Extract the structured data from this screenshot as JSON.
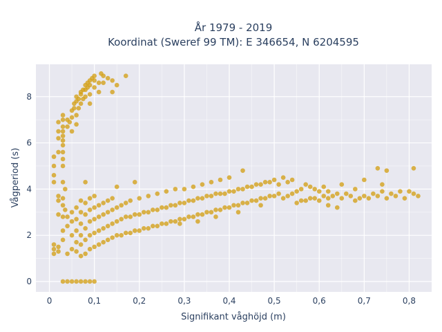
{
  "chart_data": {
    "type": "scatter",
    "title_line1": "År 1979 - 2019",
    "title_line2": "Koordinat (Sweref 99 TM): E 346654, N 6204595",
    "xlabel": "Signifikant våghöjd (m)",
    "ylabel": "Vågperiod (s)",
    "xlim": [
      -0.03,
      0.85
    ],
    "ylim": [
      -0.45,
      9.4
    ],
    "x_ticks": [
      0,
      0.1,
      0.2,
      0.3,
      0.4,
      0.5,
      0.6,
      0.7,
      0.8
    ],
    "x_tick_labels": [
      "0",
      "0,1",
      "0,2",
      "0,3",
      "0,4",
      "0,5",
      "0,6",
      "0,7",
      "0,8"
    ],
    "y_ticks": [
      0,
      2,
      4,
      6,
      8
    ],
    "y_tick_labels": [
      "0",
      "2",
      "4",
      "6",
      "8"
    ],
    "grid": true,
    "marker_color": "#D4A017",
    "plot_bg": "#E8E8F0",
    "series": [
      {
        "points": [
          [
            0.03,
            0
          ],
          [
            0.04,
            0
          ],
          [
            0.05,
            0
          ],
          [
            0.06,
            0
          ],
          [
            0.07,
            0
          ],
          [
            0.08,
            0
          ],
          [
            0.09,
            0
          ],
          [
            0.1,
            0
          ],
          [
            0.01,
            1.2
          ],
          [
            0.01,
            1.4
          ],
          [
            0.01,
            1.6
          ],
          [
            0.02,
            1.3
          ],
          [
            0.02,
            2.9
          ],
          [
            0.01,
            4.3
          ],
          [
            0.01,
            4.6
          ],
          [
            0.01,
            5.0
          ],
          [
            0.01,
            5.4
          ],
          [
            0.02,
            3.5
          ],
          [
            0.02,
            3.7
          ],
          [
            0.02,
            5.6
          ],
          [
            0.02,
            6.2
          ],
          [
            0.02,
            6.5
          ],
          [
            0.02,
            6.9
          ],
          [
            0.03,
            5.0
          ],
          [
            0.03,
            5.3
          ],
          [
            0.03,
            5.6
          ],
          [
            0.03,
            5.9
          ],
          [
            0.03,
            6.1
          ],
          [
            0.03,
            6.3
          ],
          [
            0.03,
            6.5
          ],
          [
            0.03,
            6.7
          ],
          [
            0.03,
            7.0
          ],
          [
            0.03,
            7.2
          ],
          [
            0.03,
            2.8
          ],
          [
            0.03,
            3.3
          ],
          [
            0.03,
            3.6
          ],
          [
            0.03,
            4.3
          ],
          [
            0.035,
            4.0
          ],
          [
            0.035,
            3.1
          ],
          [
            0.04,
            6.7
          ],
          [
            0.04,
            7.0
          ],
          [
            0.045,
            6.9
          ],
          [
            0.05,
            7.1
          ],
          [
            0.05,
            7.4
          ],
          [
            0.055,
            7.5
          ],
          [
            0.055,
            7.7
          ],
          [
            0.06,
            7.8
          ],
          [
            0.06,
            8.0
          ],
          [
            0.06,
            7.2
          ],
          [
            0.065,
            7.9
          ],
          [
            0.065,
            7.5
          ],
          [
            0.07,
            8.1
          ],
          [
            0.07,
            8.2
          ],
          [
            0.07,
            7.7
          ],
          [
            0.075,
            7.9
          ],
          [
            0.075,
            8.3
          ],
          [
            0.08,
            8.3
          ],
          [
            0.08,
            8.5
          ],
          [
            0.08,
            8.0
          ],
          [
            0.085,
            8.4
          ],
          [
            0.085,
            8.6
          ],
          [
            0.09,
            8.7
          ],
          [
            0.09,
            8.5
          ],
          [
            0.09,
            8.1
          ],
          [
            0.095,
            8.8
          ],
          [
            0.1,
            8.7
          ],
          [
            0.1,
            8.9
          ],
          [
            0.1,
            8.4
          ],
          [
            0.11,
            8.6
          ],
          [
            0.115,
            9.0
          ],
          [
            0.12,
            8.9
          ],
          [
            0.12,
            8.6
          ],
          [
            0.13,
            8.8
          ],
          [
            0.14,
            8.7
          ],
          [
            0.15,
            8.5
          ],
          [
            0.17,
            8.9
          ],
          [
            0.14,
            8.2
          ],
          [
            0.05,
            6.5
          ],
          [
            0.06,
            6.8
          ],
          [
            0.09,
            7.7
          ],
          [
            0.11,
            8.2
          ],
          [
            0.02,
            1.5
          ],
          [
            0.03,
            1.8
          ],
          [
            0.03,
            2.2
          ],
          [
            0.04,
            1.2
          ],
          [
            0.04,
            2.4
          ],
          [
            0.04,
            2.8
          ],
          [
            0.05,
            1.4
          ],
          [
            0.05,
            2.0
          ],
          [
            0.05,
            2.6
          ],
          [
            0.05,
            3.0
          ],
          [
            0.06,
            1.3
          ],
          [
            0.06,
            1.7
          ],
          [
            0.06,
            2.2
          ],
          [
            0.06,
            2.7
          ],
          [
            0.06,
            3.2
          ],
          [
            0.07,
            1.1
          ],
          [
            0.07,
            1.6
          ],
          [
            0.07,
            2.0
          ],
          [
            0.07,
            2.5
          ],
          [
            0.07,
            3.0
          ],
          [
            0.07,
            3.5
          ],
          [
            0.08,
            1.2
          ],
          [
            0.08,
            1.8
          ],
          [
            0.08,
            2.3
          ],
          [
            0.08,
            2.9
          ],
          [
            0.08,
            3.4
          ],
          [
            0.08,
            4.3
          ],
          [
            0.09,
            1.4
          ],
          [
            0.09,
            2.0
          ],
          [
            0.09,
            2.6
          ],
          [
            0.09,
            3.1
          ],
          [
            0.09,
            3.6
          ],
          [
            0.1,
            1.5
          ],
          [
            0.1,
            2.1
          ],
          [
            0.1,
            2.7
          ],
          [
            0.1,
            3.2
          ],
          [
            0.1,
            3.7
          ],
          [
            0.11,
            1.6
          ],
          [
            0.11,
            2.2
          ],
          [
            0.11,
            2.8
          ],
          [
            0.11,
            3.3
          ],
          [
            0.12,
            1.7
          ],
          [
            0.12,
            2.3
          ],
          [
            0.12,
            2.9
          ],
          [
            0.12,
            3.4
          ],
          [
            0.13,
            1.8
          ],
          [
            0.13,
            2.4
          ],
          [
            0.13,
            3.0
          ],
          [
            0.13,
            3.5
          ],
          [
            0.14,
            1.9
          ],
          [
            0.14,
            2.5
          ],
          [
            0.14,
            3.1
          ],
          [
            0.14,
            3.6
          ],
          [
            0.15,
            2.0
          ],
          [
            0.15,
            2.6
          ],
          [
            0.15,
            3.2
          ],
          [
            0.15,
            4.1
          ],
          [
            0.16,
            2.0
          ],
          [
            0.16,
            2.7
          ],
          [
            0.16,
            3.3
          ],
          [
            0.17,
            2.1
          ],
          [
            0.17,
            2.8
          ],
          [
            0.17,
            3.4
          ],
          [
            0.18,
            2.1
          ],
          [
            0.18,
            2.8
          ],
          [
            0.18,
            3.5
          ],
          [
            0.19,
            2.2
          ],
          [
            0.19,
            2.9
          ],
          [
            0.19,
            4.3
          ],
          [
            0.2,
            2.2
          ],
          [
            0.2,
            2.9
          ],
          [
            0.2,
            3.6
          ],
          [
            0.21,
            2.3
          ],
          [
            0.21,
            3.0
          ],
          [
            0.22,
            2.3
          ],
          [
            0.22,
            3.0
          ],
          [
            0.22,
            3.7
          ],
          [
            0.23,
            2.4
          ],
          [
            0.23,
            3.1
          ],
          [
            0.24,
            2.4
          ],
          [
            0.24,
            3.1
          ],
          [
            0.24,
            3.8
          ],
          [
            0.25,
            2.5
          ],
          [
            0.25,
            3.2
          ],
          [
            0.26,
            2.5
          ],
          [
            0.26,
            3.2
          ],
          [
            0.26,
            3.9
          ],
          [
            0.27,
            2.6
          ],
          [
            0.27,
            3.3
          ],
          [
            0.28,
            2.6
          ],
          [
            0.28,
            3.3
          ],
          [
            0.28,
            4.0
          ],
          [
            0.29,
            2.7
          ],
          [
            0.29,
            3.4
          ],
          [
            0.3,
            2.7
          ],
          [
            0.3,
            3.4
          ],
          [
            0.3,
            4.0
          ],
          [
            0.31,
            2.8
          ],
          [
            0.31,
            3.5
          ],
          [
            0.32,
            2.8
          ],
          [
            0.32,
            3.5
          ],
          [
            0.32,
            4.1
          ],
          [
            0.33,
            2.9
          ],
          [
            0.33,
            3.6
          ],
          [
            0.34,
            2.9
          ],
          [
            0.34,
            3.6
          ],
          [
            0.34,
            4.2
          ],
          [
            0.35,
            3.0
          ],
          [
            0.35,
            3.7
          ],
          [
            0.36,
            3.0
          ],
          [
            0.36,
            3.7
          ],
          [
            0.36,
            4.3
          ],
          [
            0.37,
            3.1
          ],
          [
            0.37,
            3.8
          ],
          [
            0.38,
            3.1
          ],
          [
            0.38,
            3.8
          ],
          [
            0.38,
            4.4
          ],
          [
            0.39,
            3.2
          ],
          [
            0.39,
            3.8
          ],
          [
            0.4,
            3.2
          ],
          [
            0.4,
            3.9
          ],
          [
            0.4,
            4.5
          ],
          [
            0.41,
            3.3
          ],
          [
            0.41,
            3.9
          ],
          [
            0.42,
            3.3
          ],
          [
            0.42,
            4.0
          ],
          [
            0.43,
            3.4
          ],
          [
            0.43,
            4.0
          ],
          [
            0.43,
            4.8
          ],
          [
            0.44,
            3.4
          ],
          [
            0.44,
            4.1
          ],
          [
            0.45,
            3.5
          ],
          [
            0.45,
            4.1
          ],
          [
            0.46,
            3.5
          ],
          [
            0.46,
            4.2
          ],
          [
            0.47,
            3.6
          ],
          [
            0.47,
            4.2
          ],
          [
            0.48,
            3.6
          ],
          [
            0.48,
            4.3
          ],
          [
            0.49,
            3.7
          ],
          [
            0.49,
            4.3
          ],
          [
            0.5,
            3.7
          ],
          [
            0.5,
            4.4
          ],
          [
            0.51,
            3.8
          ],
          [
            0.51,
            4.2
          ],
          [
            0.52,
            3.6
          ],
          [
            0.52,
            4.5
          ],
          [
            0.53,
            3.7
          ],
          [
            0.53,
            4.3
          ],
          [
            0.54,
            3.8
          ],
          [
            0.54,
            4.4
          ],
          [
            0.55,
            3.4
          ],
          [
            0.55,
            3.9
          ],
          [
            0.56,
            3.5
          ],
          [
            0.56,
            4.0
          ],
          [
            0.57,
            3.5
          ],
          [
            0.57,
            4.2
          ],
          [
            0.58,
            3.6
          ],
          [
            0.58,
            4.1
          ],
          [
            0.59,
            3.6
          ],
          [
            0.59,
            4.0
          ],
          [
            0.6,
            3.5
          ],
          [
            0.6,
            3.9
          ],
          [
            0.61,
            3.7
          ],
          [
            0.61,
            4.1
          ],
          [
            0.62,
            3.6
          ],
          [
            0.62,
            3.9
          ],
          [
            0.63,
            3.7
          ],
          [
            0.64,
            3.8
          ],
          [
            0.65,
            3.6
          ],
          [
            0.65,
            4.2
          ],
          [
            0.66,
            3.8
          ],
          [
            0.67,
            3.7
          ],
          [
            0.68,
            3.5
          ],
          [
            0.68,
            4.0
          ],
          [
            0.69,
            3.6
          ],
          [
            0.7,
            3.7
          ],
          [
            0.7,
            4.4
          ],
          [
            0.71,
            3.6
          ],
          [
            0.72,
            3.8
          ],
          [
            0.73,
            3.7
          ],
          [
            0.74,
            3.9
          ],
          [
            0.74,
            4.2
          ],
          [
            0.75,
            3.6
          ],
          [
            0.76,
            3.8
          ],
          [
            0.77,
            3.7
          ],
          [
            0.78,
            3.9
          ],
          [
            0.79,
            3.6
          ],
          [
            0.8,
            3.9
          ],
          [
            0.81,
            3.8
          ],
          [
            0.82,
            3.7
          ],
          [
            0.73,
            4.9
          ],
          [
            0.75,
            4.8
          ],
          [
            0.81,
            4.9
          ],
          [
            0.64,
            3.2
          ],
          [
            0.62,
            3.3
          ],
          [
            0.47,
            3.3
          ],
          [
            0.42,
            3.0
          ],
          [
            0.37,
            2.8
          ],
          [
            0.33,
            2.6
          ],
          [
            0.29,
            2.5
          ]
        ]
      }
    ]
  }
}
